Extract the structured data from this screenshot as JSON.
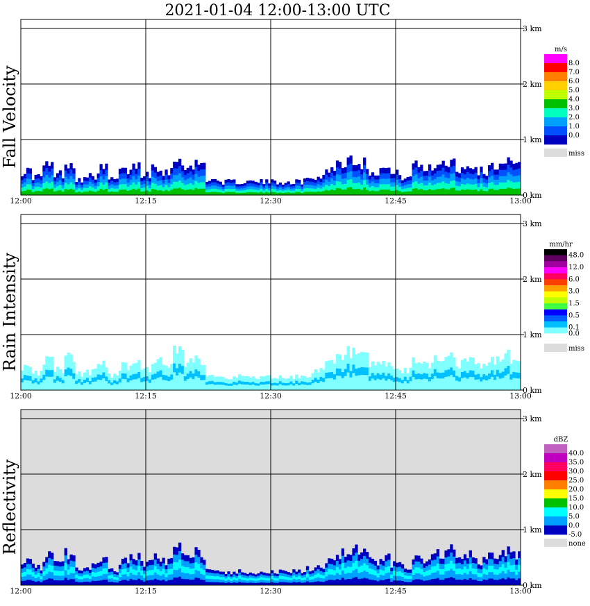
{
  "title": "2021-01-04   12:00-13:00 UTC",
  "x_tick_labels": [
    "12:00",
    "12:15",
    "12:30",
    "12:45",
    "13:00"
  ],
  "y_tick_labels": [
    "0 km",
    "1 km",
    "2 km",
    "3 km"
  ],
  "colors": {
    "missing_gray": "#dcdcdc",
    "frame": "#000000"
  },
  "panels": [
    {
      "ylabel": "Fall Velocity",
      "unit": "m/s",
      "background": "#ffffff",
      "legend": [
        {
          "label": "8.0",
          "color": "#ff00ff"
        },
        {
          "label": "7.0",
          "color": "#ff0000"
        },
        {
          "label": "6.0",
          "color": "#ff8000"
        },
        {
          "label": "5.0",
          "color": "#ffd000"
        },
        {
          "label": "4.0",
          "color": "#c0ff00"
        },
        {
          "label": "3.0",
          "color": "#00c000"
        },
        {
          "label": "2.0",
          "color": "#00ffc0"
        },
        {
          "label": "1.0",
          "color": "#00a0ff"
        },
        {
          "label": "0.0",
          "color": "#0050ff"
        },
        {
          "label": "",
          "color": "#0000c0"
        }
      ],
      "legend_extra": [
        {
          "label": "miss",
          "color": "#dcdcdc"
        }
      ]
    },
    {
      "ylabel": "Rain Intensity",
      "unit": "mm/hr",
      "background": "#ffffff",
      "legend": [
        {
          "label": "48.0",
          "color": "#000000"
        },
        {
          "label": "",
          "color": "#600060"
        },
        {
          "label": "12.0",
          "color": "#a000a0"
        },
        {
          "label": "",
          "color": "#ff00ff"
        },
        {
          "label": "6.0",
          "color": "#ff0060"
        },
        {
          "label": "",
          "color": "#ff4000"
        },
        {
          "label": "3.0",
          "color": "#ffa000"
        },
        {
          "label": "",
          "color": "#ffff00"
        },
        {
          "label": "1.5",
          "color": "#c0ff00"
        },
        {
          "label": "",
          "color": "#40ff40"
        },
        {
          "label": "0.5",
          "color": "#0000ff"
        },
        {
          "label": "",
          "color": "#0060ff"
        },
        {
          "label": "0.1",
          "color": "#00c0ff"
        },
        {
          "label": "0.0",
          "color": "#80ffff"
        },
        {
          "label": "",
          "color": "#ffffff"
        }
      ],
      "legend_extra": [
        {
          "label": "miss",
          "color": "#dcdcdc"
        }
      ]
    },
    {
      "ylabel": "Reflectivity",
      "unit": "dBZ",
      "background": "#dcdcdc",
      "legend": [
        {
          "label": "40.0",
          "color": "#c060c0"
        },
        {
          "label": "35.0",
          "color": "#c000c0"
        },
        {
          "label": "30.0",
          "color": "#ff0060"
        },
        {
          "label": "25.0",
          "color": "#ff0000"
        },
        {
          "label": "20.0",
          "color": "#ff8000"
        },
        {
          "label": "15.0",
          "color": "#ffff00"
        },
        {
          "label": "10.0",
          "color": "#00c000"
        },
        {
          "label": "5.0",
          "color": "#00ffff"
        },
        {
          "label": "0.0",
          "color": "#00a0ff"
        },
        {
          "label": "-5.0",
          "color": "#0000c0"
        }
      ],
      "legend_extra": [
        {
          "label": "none",
          "color": "#dcdcdc"
        }
      ]
    }
  ],
  "chart_data": [
    {
      "type": "heatmap",
      "title": "2021-01-04   12:00-13:00 UTC",
      "ylabel": "Fall Velocity",
      "unit": "m/s",
      "x_range": [
        "12:00",
        "13:00"
      ],
      "y_range_km": [
        0,
        3.2
      ],
      "x_ticks": [
        "12:00",
        "12:15",
        "12:30",
        "12:45",
        "13:00"
      ],
      "y_ticks_km": [
        0,
        1,
        2,
        3
      ],
      "grid": true,
      "echo_top_km": [
        0.45,
        0.35,
        0.55,
        0.4,
        0.6,
        0.3,
        0.35,
        0.5,
        0.3,
        0.45,
        0.55,
        0.4,
        0.55,
        0.45,
        0.7,
        0.5,
        0.6,
        0.3,
        0.25,
        0.25,
        0.25,
        0.25,
        0.25,
        0.25,
        0.25,
        0.25,
        0.3,
        0.35,
        0.5,
        0.6,
        0.7,
        0.6,
        0.45,
        0.5,
        0.4,
        0.35,
        0.55,
        0.5,
        0.6,
        0.65,
        0.5,
        0.55,
        0.45,
        0.55,
        0.65,
        0.55
      ]
    },
    {
      "type": "heatmap",
      "ylabel": "Rain Intensity",
      "unit": "mm/hr",
      "x_range": [
        "12:00",
        "13:00"
      ],
      "y_range_km": [
        0,
        3.2
      ],
      "x_ticks": [
        "12:00",
        "12:15",
        "12:30",
        "12:45",
        "13:00"
      ],
      "y_ticks_km": [
        0,
        1,
        2,
        3
      ],
      "grid": true,
      "echo_top_km": [
        0.45,
        0.35,
        0.55,
        0.4,
        0.6,
        0.3,
        0.35,
        0.5,
        0.3,
        0.45,
        0.55,
        0.4,
        0.55,
        0.45,
        0.7,
        0.5,
        0.6,
        0.3,
        0.25,
        0.25,
        0.25,
        0.25,
        0.25,
        0.25,
        0.25,
        0.25,
        0.3,
        0.35,
        0.5,
        0.6,
        0.7,
        0.6,
        0.45,
        0.5,
        0.4,
        0.35,
        0.55,
        0.5,
        0.6,
        0.65,
        0.5,
        0.55,
        0.45,
        0.55,
        0.65,
        0.55
      ]
    },
    {
      "type": "heatmap",
      "ylabel": "Reflectivity",
      "unit": "dBZ",
      "x_range": [
        "12:00",
        "13:00"
      ],
      "y_range_km": [
        0,
        3.2
      ],
      "x_ticks": [
        "12:00",
        "12:15",
        "12:30",
        "12:45",
        "13:00"
      ],
      "y_ticks_km": [
        0,
        1,
        2,
        3
      ],
      "grid": true,
      "echo_top_km": [
        0.45,
        0.35,
        0.55,
        0.4,
        0.6,
        0.3,
        0.35,
        0.5,
        0.3,
        0.45,
        0.55,
        0.4,
        0.55,
        0.45,
        0.7,
        0.5,
        0.6,
        0.3,
        0.25,
        0.25,
        0.25,
        0.25,
        0.25,
        0.25,
        0.25,
        0.25,
        0.3,
        0.35,
        0.5,
        0.6,
        0.7,
        0.6,
        0.45,
        0.5,
        0.4,
        0.35,
        0.55,
        0.5,
        0.6,
        0.65,
        0.5,
        0.55,
        0.45,
        0.55,
        0.65,
        0.55
      ]
    }
  ]
}
